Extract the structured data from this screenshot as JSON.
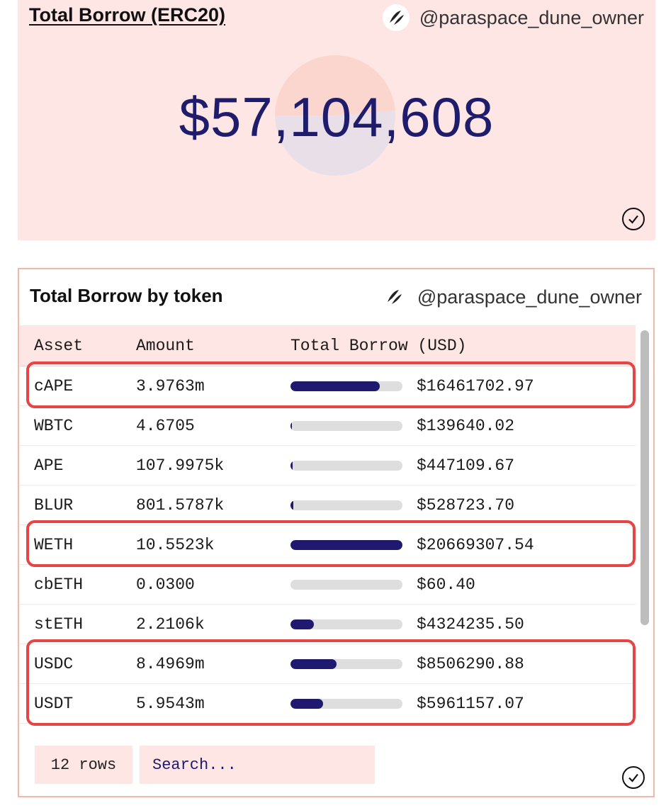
{
  "counter_card": {
    "title": "Total Borrow (ERC20)",
    "owner": "@paraspace_dune_owner",
    "value": "$57,104,608"
  },
  "table_card": {
    "title": "Total Borrow by token",
    "owner": "@paraspace_dune_owner",
    "columns": [
      "Asset",
      "Amount",
      "Total Borrow (USD)"
    ],
    "rows": [
      {
        "asset": "cAPE",
        "amount": "3.9763m",
        "usd": "$16461702.97",
        "share": 0.8,
        "highlighted": true
      },
      {
        "asset": "WBTC",
        "amount": "4.6705",
        "usd": "$139640.02",
        "share": 0.007,
        "highlighted": false
      },
      {
        "asset": "APE",
        "amount": "107.9975k",
        "usd": "$447109.67",
        "share": 0.022,
        "highlighted": false
      },
      {
        "asset": "BLUR",
        "amount": "801.5787k",
        "usd": "$528723.70",
        "share": 0.026,
        "highlighted": false
      },
      {
        "asset": "WETH",
        "amount": "10.5523k",
        "usd": "$20669307.54",
        "share": 1.0,
        "highlighted": true
      },
      {
        "asset": "cbETH",
        "amount": "0.0300",
        "usd": "$60.40",
        "share": 0.0,
        "highlighted": false
      },
      {
        "asset": "stETH",
        "amount": "2.2106k",
        "usd": "$4324235.50",
        "share": 0.21,
        "highlighted": false
      },
      {
        "asset": "USDC",
        "amount": "8.4969m",
        "usd": "$8506290.88",
        "share": 0.41,
        "highlighted": true
      },
      {
        "asset": "USDT",
        "amount": "5.9543m",
        "usd": "$5961157.07",
        "share": 0.29,
        "highlighted": true
      }
    ],
    "row_count": "12 rows",
    "search_placeholder": "Search..."
  },
  "colors": {
    "card_background": "#fde6e4",
    "bar_fill": "#1f1a70",
    "bar_track": "#dedede",
    "highlight": "#e54545",
    "value_text": "#1f1d6b"
  },
  "icons": [
    "dune-logo-icon",
    "check-circle-icon"
  ]
}
